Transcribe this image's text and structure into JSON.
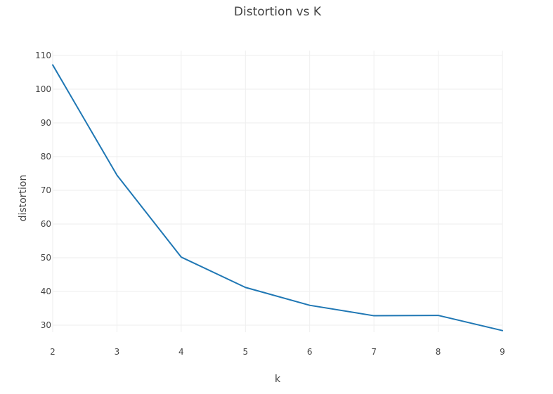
{
  "chart_data": {
    "type": "line",
    "title": "Distortion vs K",
    "xlabel": "k",
    "ylabel": "distortion",
    "x": [
      2,
      3,
      4,
      5,
      6,
      7,
      8,
      9
    ],
    "series": [
      {
        "name": "distortion",
        "values": [
          107.2,
          74.5,
          50.2,
          41.2,
          35.9,
          32.8,
          32.9,
          28.4
        ],
        "color": "#1f77b4"
      }
    ],
    "xlim": [
      2,
      9
    ],
    "ylim": [
      26,
      112
    ],
    "xticks": [
      "2",
      "3",
      "4",
      "5",
      "6",
      "7",
      "8",
      "9"
    ],
    "yticks": [
      "30",
      "40",
      "50",
      "60",
      "70",
      "80",
      "90",
      "100",
      "110"
    ],
    "grid": true,
    "legend": "none"
  },
  "colors": {
    "grid": "#eeeeee",
    "text": "#444444",
    "line": "#1f77b4"
  }
}
